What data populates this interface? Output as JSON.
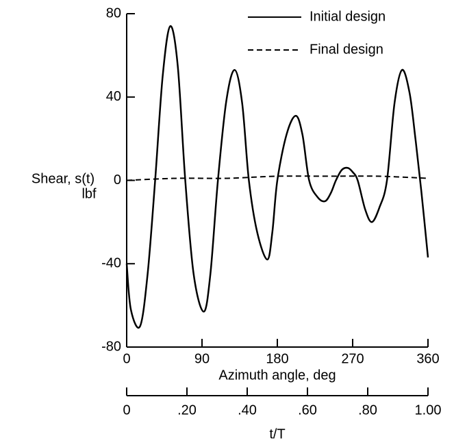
{
  "chart_data": {
    "type": "line",
    "ylabel": [
      "Shear, s(t)",
      "lbf"
    ],
    "xlabel": "Azimuth angle, deg",
    "x2label": "t/T",
    "xlim": [
      0,
      360
    ],
    "xticks": [
      0,
      90,
      180,
      270,
      360
    ],
    "x2lim": [
      0,
      1
    ],
    "x2ticks": [
      0,
      {
        "value": 0.2,
        "label": ".20"
      },
      {
        "value": 0.4,
        "label": ".40"
      },
      {
        "value": 0.6,
        "label": ".60"
      },
      {
        "value": 0.8,
        "label": ".80"
      },
      {
        "value": 1,
        "label": "1.00"
      }
    ],
    "ylim": [
      -80,
      80
    ],
    "yticks": [
      -80,
      -40,
      0,
      40,
      80
    ],
    "grid": false,
    "series": [
      {
        "name": "Initial design",
        "color": "#000000",
        "dash": false,
        "x": [
          0,
          5,
          16,
          25,
          34,
          43,
          52,
          61,
          70,
          80,
          92,
          100,
          109,
          119,
          129,
          138,
          146,
          156,
          168,
          174,
          180,
          191,
          202,
          210,
          218,
          228,
          237,
          244,
          250,
          257,
          264,
          270,
          276,
          285,
          293,
          302,
          311,
          320,
          329,
          338,
          345,
          352,
          360
        ],
        "values": [
          -40,
          -62,
          -70,
          -45,
          0,
          50,
          74,
          55,
          0,
          -45,
          -63,
          -45,
          0,
          38,
          53,
          37,
          0,
          -25,
          -38,
          -25,
          0,
          22,
          31,
          22,
          0,
          -8,
          -10,
          -6,
          0,
          5,
          6,
          4,
          0,
          -14,
          -20,
          -13,
          0,
          37,
          53,
          42,
          20,
          -5,
          -37
        ]
      },
      {
        "name": "Final design",
        "color": "#000000",
        "dash": true,
        "x": [
          0,
          60,
          120,
          180,
          240,
          300,
          360
        ],
        "values": [
          0,
          1,
          1,
          2,
          2,
          2,
          1
        ]
      }
    ]
  }
}
